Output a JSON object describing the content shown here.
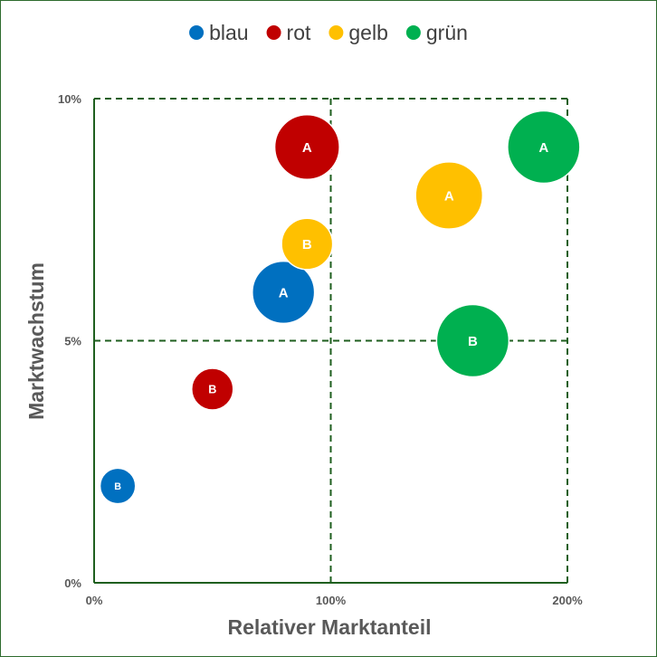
{
  "chart_data": {
    "type": "bubble",
    "title": "",
    "xlabel": "Relativer Marktanteil",
    "ylabel": "Marktwachstum",
    "xlim": [
      0,
      2
    ],
    "ylim": [
      0,
      0.1
    ],
    "x_ticks": [
      {
        "value": 0,
        "label": "0%"
      },
      {
        "value": 1,
        "label": "100%"
      },
      {
        "value": 2,
        "label": "200%"
      }
    ],
    "y_ticks": [
      {
        "value": 0,
        "label": "0%"
      },
      {
        "value": 0.05,
        "label": "5%"
      },
      {
        "value": 0.1,
        "label": "10%"
      }
    ],
    "quadrant_lines": {
      "x": 1,
      "y": 0.05
    },
    "legend_position": "top",
    "grid": false,
    "series": [
      {
        "name": "blau",
        "color": "#0070C0",
        "points": [
          {
            "label": "A",
            "x": 0.8,
            "y": 0.06,
            "size": 0.74
          },
          {
            "label": "B",
            "x": 0.1,
            "y": 0.02,
            "size": 0.24
          }
        ]
      },
      {
        "name": "rot",
        "color": "#C00000",
        "points": [
          {
            "label": "A",
            "x": 0.9,
            "y": 0.09,
            "size": 0.8
          },
          {
            "label": "B",
            "x": 0.5,
            "y": 0.04,
            "size": 0.33
          }
        ]
      },
      {
        "name": "gelb",
        "color": "#FFC000",
        "points": [
          {
            "label": "A",
            "x": 1.5,
            "y": 0.08,
            "size": 0.86
          },
          {
            "label": "B",
            "x": 0.9,
            "y": 0.07,
            "size": 0.5
          }
        ]
      },
      {
        "name": "grün",
        "color": "#00B050",
        "points": [
          {
            "label": "A",
            "x": 1.9,
            "y": 0.09,
            "size": 1.0
          },
          {
            "label": "B",
            "x": 1.6,
            "y": 0.05,
            "size": 1.0
          }
        ]
      }
    ]
  }
}
